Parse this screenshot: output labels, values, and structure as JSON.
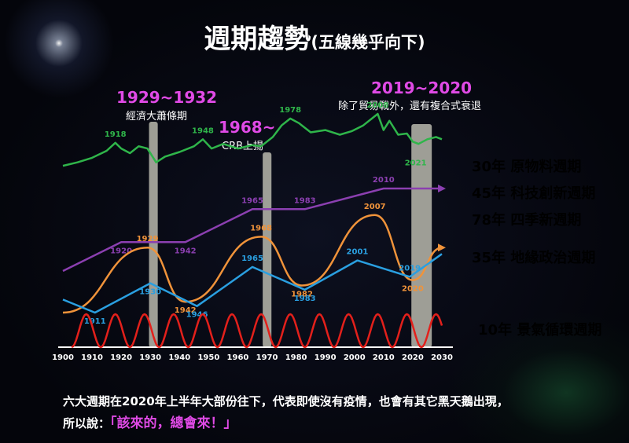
{
  "title": {
    "main": "週期趨勢",
    "sub": "(五線幾乎向下)"
  },
  "headers": [
    {
      "year": "1929~1932",
      "note": "經濟大蕭條期"
    },
    {
      "year": "1968~",
      "note": "CRB上揚"
    },
    {
      "year": "2019~2020",
      "note": "除了貿易戰外，還有複合式衰退"
    }
  ],
  "legend": [
    {
      "label": "30年 原物料週期",
      "color": "#2fb54a"
    },
    {
      "label": "45年 科技創新週期",
      "color": "#8b3fb0"
    },
    {
      "label": "78年 四季新週期",
      "color": "#f0933a"
    },
    {
      "label": "35年 地緣政治週期",
      "color": "#2a9fe0"
    },
    {
      "label": "10年 景氣循環週期",
      "color": "#e3201b"
    }
  ],
  "footer": {
    "line1": "六大週期在2020年上半年大部份往下，代表即使沒有疫情，也會有其它黑天鵝出現，",
    "line2_prefix": "所以說：",
    "line2_highlight": "「該來的，總會來！」"
  },
  "chart_data": {
    "type": "line",
    "x_axis": {
      "ticks": [
        "1900",
        "1910",
        "1920",
        "1930",
        "1940",
        "1950",
        "1960",
        "1970",
        "1980",
        "1990",
        "2000",
        "2010",
        "2020",
        "2030"
      ],
      "range": [
        1900,
        2030
      ]
    },
    "shaded_periods": [
      [
        1929,
        1932
      ],
      [
        1968,
        1971
      ],
      [
        2019,
        2026
      ]
    ],
    "series": [
      {
        "name": "30年 原物料週期",
        "color": "#2fb54a",
        "level": 0.62,
        "points": [
          [
            1900,
            0.55
          ],
          [
            1905,
            0.58
          ],
          [
            1910,
            0.62
          ],
          [
            1915,
            0.68
          ],
          [
            1918,
            0.75
          ],
          [
            1920,
            0.7
          ],
          [
            1923,
            0.66
          ],
          [
            1926,
            0.72
          ],
          [
            1929,
            0.7
          ],
          [
            1932,
            0.58
          ],
          [
            1935,
            0.63
          ],
          [
            1940,
            0.67
          ],
          [
            1945,
            0.72
          ],
          [
            1948,
            0.78
          ],
          [
            1951,
            0.7
          ],
          [
            1955,
            0.74
          ],
          [
            1960,
            0.7
          ],
          [
            1965,
            0.73
          ],
          [
            1968,
            0.72
          ],
          [
            1972,
            0.8
          ],
          [
            1975,
            0.9
          ],
          [
            1978,
            0.96
          ],
          [
            1981,
            0.92
          ],
          [
            1985,
            0.84
          ],
          [
            1990,
            0.86
          ],
          [
            1995,
            0.82
          ],
          [
            1999,
            0.85
          ],
          [
            2003,
            0.9
          ],
          [
            2006,
            0.96
          ],
          [
            2008,
            1.0
          ],
          [
            2010,
            0.86
          ],
          [
            2012,
            0.94
          ],
          [
            2015,
            0.82
          ],
          [
            2018,
            0.83
          ],
          [
            2020,
            0.76
          ],
          [
            2022,
            0.74
          ],
          [
            2025,
            0.78
          ],
          [
            2028,
            0.8
          ],
          [
            2030,
            0.78
          ]
        ],
        "labels": [
          {
            "x": 1918,
            "text": "1918"
          },
          {
            "x": 1948,
            "text": "1948"
          },
          {
            "x": 1978,
            "text": "1978"
          },
          {
            "x": 2008,
            "text": "2008"
          },
          {
            "x": 2021,
            "text": "2021"
          }
        ]
      },
      {
        "name": "45年 科技創新週期",
        "color": "#8b3fb0",
        "level": 0.5,
        "points": [
          [
            1900,
            0.0
          ],
          [
            1920,
            0.35
          ],
          [
            1942,
            0.35
          ],
          [
            1965,
            0.75
          ],
          [
            1983,
            0.75
          ],
          [
            2010,
            1.0
          ],
          [
            2030,
            1.0
          ]
        ],
        "labels": [
          {
            "x": 1920,
            "text": "1920"
          },
          {
            "x": 1942,
            "text": "1942"
          },
          {
            "x": 1965,
            "text": "1965"
          },
          {
            "x": 1983,
            "text": "1983"
          },
          {
            "x": 2010,
            "text": "2010"
          }
        ]
      },
      {
        "name": "78年 四季新週期",
        "color": "#f0933a",
        "level": 0.45,
        "points": [
          [
            1900,
            0.0
          ],
          [
            1929,
            0.6
          ],
          [
            1942,
            0.1
          ],
          [
            1968,
            0.7
          ],
          [
            1982,
            0.25
          ],
          [
            2007,
            0.9
          ],
          [
            2020,
            0.3
          ],
          [
            2030,
            0.6
          ]
        ],
        "labels": [
          {
            "x": 1929,
            "text": "1929"
          },
          {
            "x": 1942,
            "text": "1942"
          },
          {
            "x": 1968,
            "text": "1968"
          },
          {
            "x": 1982,
            "text": "1982"
          },
          {
            "x": 2007,
            "text": "2007"
          },
          {
            "x": 2020,
            "text": "2020"
          }
        ]
      },
      {
        "name": "35年 地緣政治週期",
        "color": "#2a9fe0",
        "level": 0.35,
        "points": [
          [
            1900,
            0.2
          ],
          [
            1911,
            0.0
          ],
          [
            1930,
            0.45
          ],
          [
            1946,
            0.1
          ],
          [
            1965,
            0.7
          ],
          [
            1983,
            0.35
          ],
          [
            2001,
            0.8
          ],
          [
            2019,
            0.55
          ],
          [
            2030,
            0.9
          ]
        ],
        "labels": [
          {
            "x": 1911,
            "text": "1911"
          },
          {
            "x": 1930,
            "text": "1930"
          },
          {
            "x": 1946,
            "text": "1946"
          },
          {
            "x": 1965,
            "text": "1965"
          },
          {
            "x": 1983,
            "text": "1983"
          },
          {
            "x": 2001,
            "text": "2001"
          },
          {
            "x": 2019,
            "text": "2019"
          }
        ]
      },
      {
        "name": "10年 景氣循環週期",
        "color": "#e3201b",
        "level": 0.1,
        "period": 10,
        "start": 1903,
        "end": 2030
      }
    ]
  }
}
